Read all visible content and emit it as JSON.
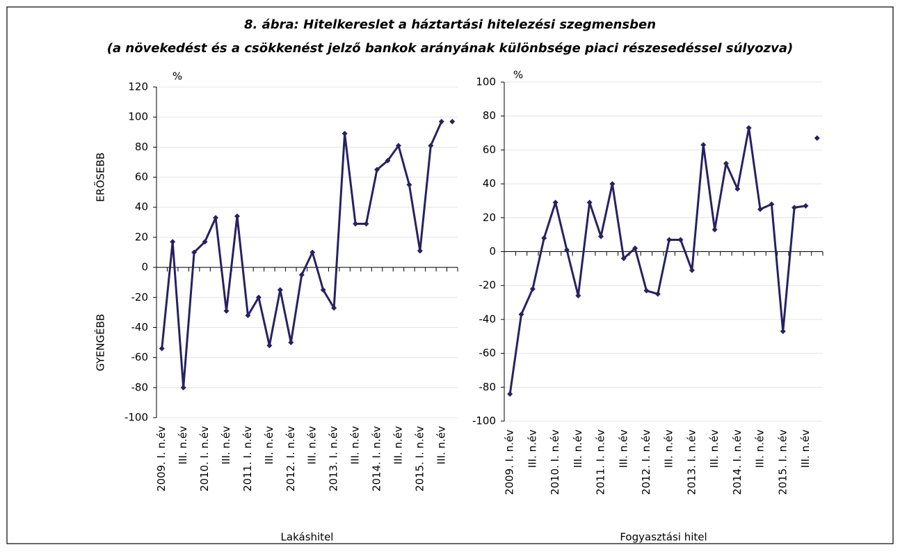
{
  "header": {
    "title": "8. ábra: Hitelkereslet a háztartási hitelezési szegmensben",
    "subtitle": "(a növekedést és a csökkenést jelző bankok arányának különbsége piaci részesedéssel súlyozva)"
  },
  "chart_data": [
    {
      "type": "line",
      "x_label": "Lakáshitel",
      "y_unit": "%",
      "y_label_top": "ERŐSEBB",
      "y_label_bottom": "GYENGÉBB",
      "categories": [
        "2009. I. n.év",
        null,
        "III. n.év",
        null,
        "2010. I. n.év",
        null,
        "III. n.év",
        null,
        "2011. I. n.év",
        null,
        "III. n.év",
        null,
        "2012. I. n.év",
        null,
        "III. n.év",
        null,
        "2013. I. n.év",
        null,
        "III. n.év",
        null,
        "2014. I. n.év",
        null,
        "III. n.év",
        null,
        "2015. I. n.év",
        null,
        "III. n.év",
        null
      ],
      "series": [
        {
          "color": "#262262",
          "style": "line",
          "values": [
            -54,
            17,
            -80,
            10,
            17,
            33,
            -29,
            34,
            -32,
            -20,
            -52,
            -15,
            -50,
            -5,
            10,
            -15,
            -27,
            89,
            29,
            29,
            65,
            71,
            81,
            55,
            11,
            81,
            97,
            null
          ]
        },
        {
          "color": "#262262",
          "style": "markers",
          "values": [
            null,
            null,
            null,
            null,
            null,
            null,
            null,
            null,
            null,
            null,
            null,
            null,
            null,
            null,
            null,
            null,
            null,
            null,
            null,
            null,
            null,
            null,
            null,
            null,
            null,
            null,
            null,
            97
          ]
        }
      ],
      "ylim": [
        -100,
        120
      ],
      "yticks": [
        -100,
        -80,
        -60,
        -40,
        -20,
        0,
        20,
        40,
        60,
        80,
        100,
        120
      ],
      "grid": true
    },
    {
      "type": "line",
      "x_label": "Fogyasztási hitel",
      "y_unit": "%",
      "categories": [
        "2009. I. n.év",
        null,
        "III. n.év",
        null,
        "2010. I. n.év",
        null,
        "III. n.év",
        null,
        "2011. I. n.év",
        null,
        "III. n.év",
        null,
        "2012. I. n.év",
        null,
        "III. n.év",
        null,
        "2013. I. n.év",
        null,
        "III. n.év",
        null,
        "2014. I. n.év",
        null,
        "III. n.év",
        null,
        "2015. I. n.év",
        null,
        "III. n.év",
        null
      ],
      "series": [
        {
          "color": "#262262",
          "style": "line",
          "values": [
            -84,
            -37,
            -22,
            8,
            29,
            1,
            -26,
            29,
            9,
            40,
            -4,
            2,
            -23,
            -25,
            7,
            7,
            -11,
            63,
            13,
            52,
            37,
            73,
            25,
            28,
            -47,
            26,
            27,
            null
          ]
        },
        {
          "color": "#262262",
          "style": "markers",
          "values": [
            null,
            null,
            null,
            null,
            null,
            null,
            null,
            null,
            null,
            null,
            null,
            null,
            null,
            null,
            null,
            null,
            null,
            null,
            null,
            null,
            null,
            null,
            null,
            null,
            null,
            null,
            null,
            67
          ]
        }
      ],
      "ylim": [
        -100,
        100
      ],
      "yticks": [
        -100,
        -80,
        -60,
        -40,
        -20,
        0,
        20,
        40,
        60,
        80,
        100
      ],
      "grid": true
    }
  ]
}
